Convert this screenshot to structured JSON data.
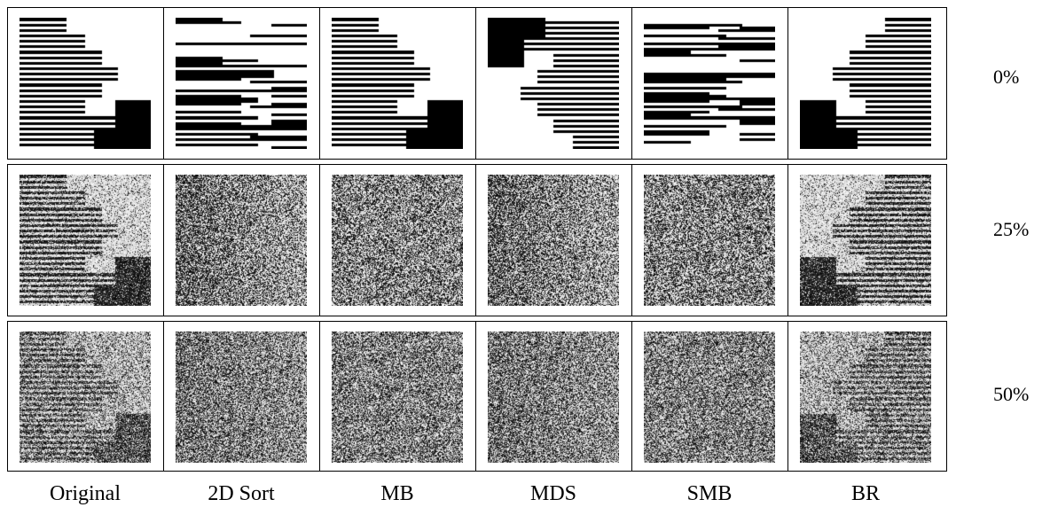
{
  "columns": [
    "Original",
    "2D Sort",
    "MB",
    "MDS",
    "SMB",
    "BR"
  ],
  "rows": [
    {
      "label": "0%",
      "noise": 0.0
    },
    {
      "label": "25%",
      "noise": 0.25
    },
    {
      "label": "50%",
      "noise": 0.5
    }
  ]
}
